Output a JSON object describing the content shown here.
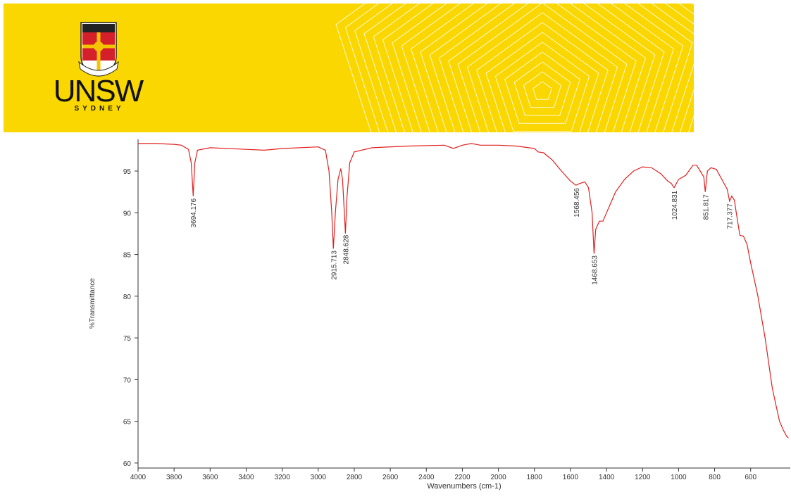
{
  "header": {
    "logo_text": "UNSW",
    "logo_subtext": "SYDNEY"
  },
  "chart_data": {
    "type": "line",
    "xlabel": "Wavenumbers (cm-1)",
    "ylabel": "%Transmittance",
    "xlim": [
      4000,
      380
    ],
    "ylim": [
      59.4,
      98.8
    ],
    "xticks": [
      4000,
      3800,
      3600,
      3400,
      3200,
      3000,
      2800,
      2600,
      2400,
      2200,
      2000,
      1800,
      1600,
      1400,
      1200,
      1000,
      800,
      600
    ],
    "yticks": [
      60,
      65,
      70,
      75,
      80,
      85,
      90,
      95
    ],
    "x": [
      4000,
      3900,
      3800,
      3760,
      3720,
      3705,
      3694,
      3685,
      3670,
      3600,
      3400,
      3300,
      3200,
      3000,
      2960,
      2940,
      2925,
      2916,
      2905,
      2890,
      2875,
      2865,
      2855,
      2849,
      2840,
      2825,
      2800,
      2700,
      2500,
      2300,
      2250,
      2200,
      2150,
      2100,
      2000,
      1900,
      1800,
      1780,
      1750,
      1700,
      1650,
      1600,
      1570,
      1550,
      1520,
      1500,
      1480,
      1469,
      1460,
      1440,
      1420,
      1400,
      1380,
      1350,
      1300,
      1250,
      1200,
      1150,
      1100,
      1060,
      1040,
      1025,
      1000,
      960,
      920,
      900,
      880,
      860,
      852,
      840,
      820,
      790,
      760,
      730,
      717,
      705,
      690,
      680,
      660,
      640,
      620,
      600,
      560,
      520,
      480,
      460,
      440,
      420,
      400,
      390
    ],
    "series": [
      {
        "color": "#e02020",
        "values": [
          98.3,
          98.3,
          98.2,
          98.1,
          97.6,
          96,
          92,
          96,
          97.5,
          97.8,
          97.6,
          97.5,
          97.7,
          97.9,
          97.5,
          95,
          90,
          85.7,
          90,
          94,
          95.3,
          94,
          90,
          87.5,
          92,
          96,
          97.3,
          97.8,
          98,
          98.1,
          97.7,
          98.1,
          98.3,
          98.1,
          98.1,
          98,
          97.7,
          97.3,
          97.2,
          96.3,
          95,
          93.8,
          93.3,
          93.5,
          93.7,
          93,
          90,
          85.1,
          88,
          89,
          89,
          90,
          91,
          92.5,
          94,
          95,
          95.5,
          95.4,
          94.7,
          93.8,
          93.5,
          93,
          94,
          94.5,
          95.7,
          95.7,
          95,
          94.3,
          92.5,
          95,
          95.4,
          95.2,
          94,
          92.8,
          91.4,
          92,
          91.5,
          90,
          87.3,
          87.2,
          86.2,
          84,
          80,
          75,
          69,
          67,
          65,
          64,
          63.2,
          63
        ]
      }
    ],
    "peaks": [
      3694.176,
      2915.713,
      2848.628,
      1568.456,
      1468.653,
      1024.831,
      851.817,
      717.377
    ]
  }
}
